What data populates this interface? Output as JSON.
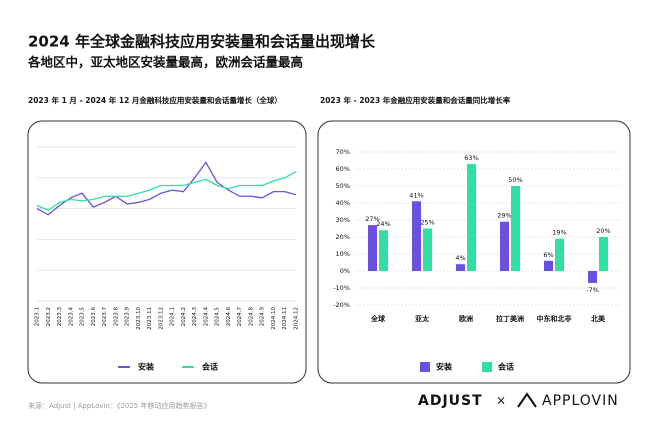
{
  "title": "2024 年全球金融科技应用安装量和会话量出现增长",
  "subtitle": "各地区中，亚太地区安装量最高，欧洲会话量最高",
  "source": "来源：Adjust | AppLovin：《2025 年移动应用趋势报告》",
  "logos": [
    "ADJUST",
    "×",
    "APPLOVIN"
  ],
  "chart_data": [
    {
      "type": "line",
      "title": "2023 年 1 月 - 2024 年 12 月金融科技应用安装量和会话量增长（全球）",
      "categories": [
        "2023.1",
        "2023.2",
        "2023.3",
        "2023.4",
        "2023.5",
        "2023.6",
        "2023.7",
        "2023.8",
        "2023.9",
        "2023.10",
        "2023.11",
        "2023.12",
        "2024.1",
        "2024.2",
        "2024.3",
        "2024.4",
        "2024.5",
        "2024.6",
        "2024.7",
        "2024.8",
        "2024.9",
        "2024.10",
        "2024.11",
        "2024.12"
      ],
      "ylim": [
        0,
        100
      ],
      "grid": true,
      "series": [
        {
          "name": "安装",
          "color": "#6a4fe0",
          "values": [
            60,
            56,
            62,
            67,
            70,
            61,
            64,
            68,
            63,
            64,
            66,
            70,
            72,
            71,
            80,
            90,
            77,
            72,
            68,
            68,
            67,
            71,
            71,
            69
          ]
        },
        {
          "name": "会话",
          "color": "#2fe0a0",
          "values": [
            62,
            59,
            64,
            66,
            65,
            66,
            68,
            68,
            68,
            70,
            72,
            75,
            75,
            75,
            77,
            79,
            75,
            73,
            75,
            75,
            75,
            78,
            80,
            84
          ]
        }
      ]
    },
    {
      "type": "bar",
      "title": "2023 年 - 2023 年金融应用安装量和会话量同比增长率",
      "categories": [
        "全球",
        "亚太",
        "欧洲",
        "拉丁美洲",
        "中东和北非",
        "北美"
      ],
      "ylim": [
        -20,
        70
      ],
      "yticks": [
        {
          "value": -20,
          "label": "-20%"
        },
        {
          "value": -10,
          "label": "-10%"
        },
        {
          "value": 0,
          "label": "0%"
        },
        {
          "value": 10,
          "label": "10%"
        },
        {
          "value": 20,
          "label": "20%"
        },
        {
          "value": 30,
          "label": "30%"
        },
        {
          "value": 40,
          "label": "40%"
        },
        {
          "value": 50,
          "label": "50%"
        },
        {
          "value": 60,
          "label": "60%"
        },
        {
          "value": 70,
          "label": "70%"
        }
      ],
      "grid": true,
      "series": [
        {
          "name": "安装",
          "color": "#6a4fe0",
          "values": [
            27,
            41,
            4,
            29,
            6,
            -7
          ],
          "value_labels": [
            "27%",
            "41%",
            "4%",
            "29%",
            "6%",
            "-7%"
          ]
        },
        {
          "name": "会话",
          "color": "#2fe0a0",
          "values": [
            24,
            25,
            63,
            50,
            19,
            20
          ],
          "value_labels": [
            "24%",
            "25%",
            "63%",
            "50%",
            "19%",
            "20%"
          ]
        }
      ]
    }
  ]
}
